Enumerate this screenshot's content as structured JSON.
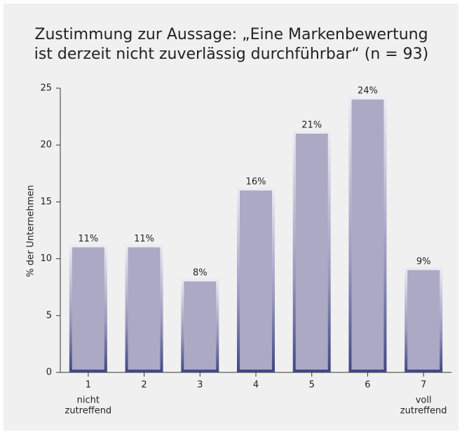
{
  "chart_data": {
    "type": "bar",
    "title": [
      "Zustimmung zur Aussage: „Eine Markenbewertung",
      "ist derzeit nicht zuverlässig durchführbar“ (n = 93)"
    ],
    "ylabel": "% der Unternehmen",
    "categories": [
      "1",
      "2",
      "3",
      "4",
      "5",
      "6",
      "7"
    ],
    "values": [
      11,
      11,
      8,
      16,
      21,
      24,
      9
    ],
    "value_labels": [
      "11%",
      "11%",
      "8%",
      "16%",
      "21%",
      "24%",
      "9%"
    ],
    "x_notes": {
      "left": [
        "nicht",
        "zutreffend"
      ],
      "right": [
        "voll",
        "zutreffend"
      ]
    },
    "color": "#aca9c5",
    "ylim": [
      0,
      25
    ],
    "yticks": [
      0,
      5,
      10,
      15,
      20,
      25
    ],
    "grid": false
  }
}
